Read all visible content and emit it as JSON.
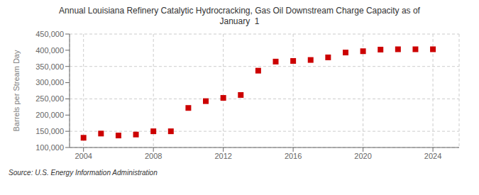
{
  "chart_data": {
    "type": "scatter",
    "title": "Annual Louisiana Refinery Catalytic Hydrocracking, Gas Oil Downstream Charge Capacity as of\nJanuary  1",
    "ylabel": "Barrels per Stream Day",
    "source": "Source: U.S. Energy Information Administration",
    "x": [
      2004,
      2005,
      2006,
      2007,
      2008,
      2009,
      2010,
      2011,
      2012,
      2013,
      2014,
      2015,
      2016,
      2017,
      2018,
      2019,
      2020,
      2021,
      2022,
      2023,
      2024
    ],
    "values": [
      130000,
      143000,
      137000,
      140000,
      150000,
      150000,
      222000,
      243000,
      253000,
      262000,
      337000,
      365000,
      367000,
      370000,
      378000,
      393000,
      397000,
      402000,
      403000,
      403000,
      403000
    ],
    "color": "#cc0000",
    "marker": "square",
    "xlim": [
      2003.2,
      2025.5
    ],
    "xticks": [
      2004,
      2008,
      2012,
      2016,
      2020,
      2024
    ],
    "ylim": [
      100000,
      450000
    ],
    "yticks": [
      {
        "value": 100000,
        "label": "100,000"
      },
      {
        "value": 150000,
        "label": "150,000"
      },
      {
        "value": 200000,
        "label": "200,000"
      },
      {
        "value": 250000,
        "label": "250,000"
      },
      {
        "value": 300000,
        "label": "300,000"
      },
      {
        "value": 350000,
        "label": "350,000"
      },
      {
        "value": 400000,
        "label": "400,000"
      },
      {
        "value": 450000,
        "label": "450,000"
      }
    ],
    "grid": true
  }
}
